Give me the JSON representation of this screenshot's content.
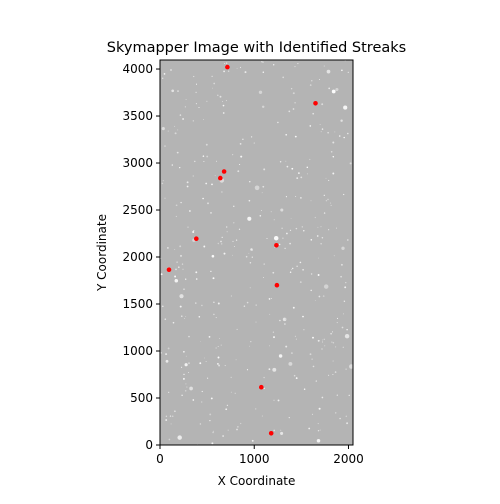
{
  "chart_data": {
    "type": "scatter",
    "title": "Skymapper Image with Identified Streaks",
    "xlabel": "X Coordinate",
    "ylabel": "Y Coordinate",
    "xlim": [
      0,
      2048
    ],
    "ylim": [
      0,
      4096
    ],
    "x_ticks": [
      0,
      1000,
      2000
    ],
    "y_ticks": [
      0,
      500,
      1000,
      1500,
      2000,
      2500,
      3000,
      3500,
      4000
    ],
    "grid": false,
    "background": "grayscale astronomical image",
    "marker_color": "#ff0000",
    "points": [
      {
        "x": 715,
        "y": 4020
      },
      {
        "x": 1650,
        "y": 3635
      },
      {
        "x": 680,
        "y": 2910
      },
      {
        "x": 640,
        "y": 2840
      },
      {
        "x": 385,
        "y": 2195
      },
      {
        "x": 1235,
        "y": 2125
      },
      {
        "x": 95,
        "y": 1865
      },
      {
        "x": 1240,
        "y": 1700
      },
      {
        "x": 1075,
        "y": 615
      },
      {
        "x": 1180,
        "y": 125
      }
    ]
  },
  "colors": {
    "image_base": "#b4b4b4",
    "marker": "#ff0000",
    "axis": "#000000"
  }
}
